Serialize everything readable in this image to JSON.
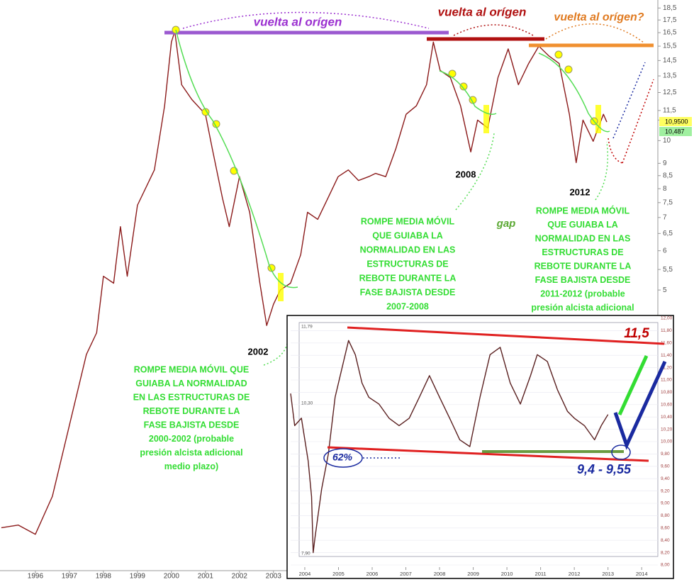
{
  "chart_data": [
    {
      "type": "line",
      "log_scale": true,
      "color": "#8b1a1a",
      "xlim": [
        1994.96,
        2014.3
      ],
      "xticks": [
        1996,
        1997,
        1998,
        1999,
        2000,
        2001,
        2002,
        2003
      ],
      "ylim": [
        1.36,
        19.2
      ],
      "yticks": [
        {
          "value": 18.5,
          "label": "18,5"
        },
        {
          "value": 17.5,
          "label": "17,5"
        },
        {
          "value": 16.5,
          "label": "16,5"
        },
        {
          "value": 15.5,
          "label": "15,5"
        },
        {
          "value": 14.5,
          "label": "14,5"
        },
        {
          "value": 13.5,
          "label": "13,5"
        },
        {
          "value": 12.5,
          "label": "12,5"
        },
        {
          "value": 11.5,
          "label": "11,5"
        },
        11,
        10,
        9,
        {
          "value": 8.5,
          "label": "8,5"
        },
        8,
        {
          "value": 7.5,
          "label": "7,5"
        },
        7,
        {
          "value": 6.5,
          "label": "6,5"
        },
        6,
        {
          "value": 5.5,
          "label": "5,5"
        },
        5
      ],
      "x": [
        1995.0,
        1995.5,
        1996.0,
        1996.5,
        1997.0,
        1997.5,
        1997.8,
        1998.0,
        1998.3,
        1998.5,
        1998.7,
        1999.0,
        1999.5,
        1999.8,
        2000.0,
        2000.1,
        2000.3,
        2000.6,
        2001.0,
        2001.2,
        2001.5,
        2001.7,
        2002.0,
        2002.3,
        2002.6,
        2002.8,
        2003.0,
        2003.2,
        2003.5,
        2003.8,
        2004.0,
        2004.3,
        2004.6,
        2004.9,
        2005.2,
        2005.5,
        2005.8,
        2006.0,
        2006.3,
        2006.6,
        2006.9,
        2007.2,
        2007.5,
        2007.7,
        2007.9,
        2008.2,
        2008.5,
        2008.8,
        2009.0,
        2009.3,
        2009.6,
        2009.9,
        2010.2,
        2010.5,
        2010.8,
        2011.1,
        2011.4,
        2011.7,
        2011.9,
        2012.1,
        2012.4,
        2012.7,
        2012.8
      ],
      "values": [
        1.66,
        1.68,
        1.61,
        1.92,
        2.67,
        3.71,
        4.1,
        5.33,
        5.16,
        6.71,
        5.33,
        7.41,
        8.73,
        11.75,
        15.8,
        16.6,
        12.96,
        12.1,
        11.3,
        9.64,
        7.66,
        6.71,
        8.46,
        7.17,
        5.16,
        4.24,
        4.68,
        5.0,
        5.16,
        5.89,
        7.17,
        6.94,
        7.66,
        8.46,
        8.73,
        8.31,
        8.46,
        8.59,
        8.46,
        9.64,
        11.3,
        11.75,
        12.96,
        15.8,
        13.85,
        13.4,
        11.75,
        9.49,
        11.0,
        10.6,
        13.4,
        15.3,
        12.96,
        14.3,
        15.5,
        14.8,
        14.3,
        11.3,
        9.03,
        11.0,
        9.97,
        11.3,
        10.9
      ],
      "annotations": [
        {
          "lines": [
            "vuelta al orígen"
          ],
          "color": "#9b30d0"
        },
        {
          "lines": [
            "vuelta al orígen"
          ],
          "color": "#b01010"
        },
        {
          "lines": [
            "vuelta al orígen?"
          ],
          "color": "#e07a20"
        },
        {
          "lines": [
            "2008"
          ],
          "color": "#000000"
        },
        {
          "lines": [
            "2012"
          ],
          "color": "#000000"
        },
        {
          "lines": [
            "2002"
          ],
          "color": "#000000"
        },
        {
          "lines": [
            "gap"
          ],
          "color": "#5aa832"
        },
        {
          "lines": [
            "ROMPE MEDIA MÓVIL QUE",
            "GUIABA LA NORMALIDAD",
            "EN LAS ESTRUCTURAS DE",
            "REBOTE DURANTE LA",
            "FASE BAJISTA DESDE",
            "2000-2002 (probable",
            "presión alcista adicional",
            "medio plazo)"
          ],
          "color": "#33dd33"
        },
        {
          "lines": [
            "ROMPE MEDIA MÓVIL",
            "QUE GUIABA LA",
            "NORMALIDAD EN LAS",
            "ESTRUCTURAS DE",
            "REBOTE DURANTE LA",
            "FASE BAJISTA DESDE",
            "2007-2008"
          ],
          "color": "#33dd33"
        },
        {
          "lines": [
            "ROMPE MEDIA MÓVIL",
            "QUE GUIABA LA",
            "NORMALIDAD EN LAS",
            "ESTRUCTURAS DE",
            "REBOTE DURANTE LA",
            "FASE BAJISTA DESDE",
            "2011-2012 (probable",
            "presión alcista adicional"
          ],
          "color": "#33dd33"
        },
        {
          "lines": [
            "10,9500"
          ],
          "color": "#000000"
        },
        {
          "lines": [
            "10,487"
          ],
          "color": "#000000"
        }
      ]
    },
    {
      "type": "line",
      "log_scale": false,
      "color": "#5a2020",
      "xlim": [
        2003.58,
        2014.48
      ],
      "xticks": [
        2004,
        2005,
        2006,
        2007,
        2008,
        2009,
        2010,
        2011,
        2012,
        2013,
        2014
      ],
      "ylim": [
        8.0,
        12.0
      ],
      "yticks": [
        {
          "value": 12.0,
          "label": "12,00"
        },
        {
          "value": 11.8,
          "label": "11,80"
        },
        {
          "value": 11.6,
          "label": "11,60"
        },
        {
          "value": 11.4,
          "label": "11,40"
        },
        {
          "value": 11.2,
          "label": "11,20"
        },
        {
          "value": 11.0,
          "label": "11,00"
        },
        {
          "value": 10.8,
          "label": "10,80"
        },
        {
          "value": 10.6,
          "label": "10,60"
        },
        {
          "value": 10.4,
          "label": "10,40"
        },
        {
          "value": 10.2,
          "label": "10,20"
        },
        {
          "value": 10.0,
          "label": "10,00"
        },
        {
          "value": 9.8,
          "label": "9,80"
        },
        {
          "value": 9.6,
          "label": "9,60"
        },
        {
          "value": 9.4,
          "label": "9,40"
        },
        {
          "value": 9.2,
          "label": "9,20"
        },
        {
          "value": 9.0,
          "label": "9,00"
        },
        {
          "value": 8.8,
          "label": "8,80"
        },
        {
          "value": 8.6,
          "label": "8,60"
        },
        {
          "value": 8.4,
          "label": "8,40"
        },
        {
          "value": 8.2,
          "label": "8,20"
        },
        {
          "value": 8.0,
          "label": "8,00"
        }
      ],
      "x": [
        2003.58,
        2003.7,
        2003.9,
        2004.1,
        2004.2,
        2004.25,
        2004.3,
        2004.5,
        2004.7,
        2004.9,
        2005.1,
        2005.3,
        2005.5,
        2005.7,
        2005.9,
        2006.2,
        2006.5,
        2006.8,
        2007.1,
        2007.4,
        2007.7,
        2008.0,
        2008.3,
        2008.6,
        2008.9,
        2009.2,
        2009.5,
        2009.8,
        2010.1,
        2010.4,
        2010.7,
        2010.9,
        2011.2,
        2011.5,
        2011.8,
        2012.0,
        2012.3,
        2012.6,
        2012.8,
        2013.0
      ],
      "values": [
        10.78,
        10.26,
        10.38,
        9.69,
        9.11,
        8.2,
        8.43,
        9.23,
        9.8,
        10.72,
        11.18,
        11.64,
        11.41,
        10.95,
        10.72,
        10.61,
        10.38,
        10.26,
        10.38,
        10.72,
        11.07,
        10.72,
        10.38,
        10.03,
        9.92,
        10.72,
        11.41,
        11.53,
        10.95,
        10.61,
        11.07,
        11.41,
        11.3,
        10.84,
        10.49,
        10.38,
        10.26,
        10.03,
        10.26,
        10.44
      ],
      "annotations": [
        {
          "lines": [
            "11,5"
          ],
          "color": "#c00000"
        },
        {
          "lines": [
            "9,4 - 9,55"
          ],
          "color": "#1a2aa0"
        },
        {
          "lines": [
            "62%"
          ],
          "color": "#1a2aa0"
        },
        {
          "lines": [
            "11,79"
          ],
          "color": "#555555"
        },
        {
          "lines": [
            "10,30"
          ],
          "color": "#555555"
        },
        {
          "lines": [
            "7,90"
          ],
          "color": "#555555"
        }
      ]
    }
  ]
}
